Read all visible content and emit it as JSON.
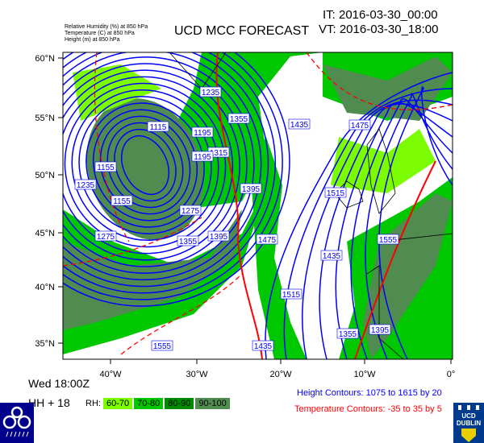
{
  "header": {
    "variables": [
      "Relative Humidity  (%)    at  850 hPa",
      "Temperature   (C)    at  850 hPa",
      "Height  (m)    at  850 hPa"
    ],
    "title": "UCD MCC FORECAST",
    "init_time": "IT: 2016-03-30_00:00",
    "valid_time": "VT: 2016-03-30_18:00"
  },
  "map": {
    "lat_labels": [
      "60°N",
      "55°N",
      "50°N",
      "45°N",
      "40°N",
      "35°N"
    ],
    "lon_labels": [
      "40°W",
      "30°W",
      "20°W",
      "10°W",
      "0°"
    ],
    "height_labels": [
      "1115",
      "1155",
      "1195",
      "1235",
      "1275",
      "1315",
      "1355",
      "1395",
      "1435",
      "1475",
      "1515",
      "1555",
      "1235",
      "1195",
      "1155",
      "1275",
      "1355",
      "1395",
      "1435",
      "1475",
      "1515",
      "1555",
      "1355",
      "1395",
      "1435"
    ],
    "colors": {
      "rh_60_70": "#7cfc00",
      "rh_70_80": "#00c800",
      "rh_80_90": "#008c00",
      "rh_90_100": "#508c50",
      "height": "#0000ff",
      "temperature": "#ff0000"
    }
  },
  "footer": {
    "day_time": "Wed 18:00Z",
    "lead": "HH + 18",
    "rh_label": "RH:",
    "rh_bins": [
      "60-70",
      "70-80",
      "80-90",
      "90-100"
    ],
    "height_note": "Height Contours: 1075 to 1615 by 20",
    "temp_note": "Temperature Contours: -35 to 35 by 5",
    "left_logo_text": "MCC",
    "right_logo_text": "UCD DUBLIN"
  }
}
